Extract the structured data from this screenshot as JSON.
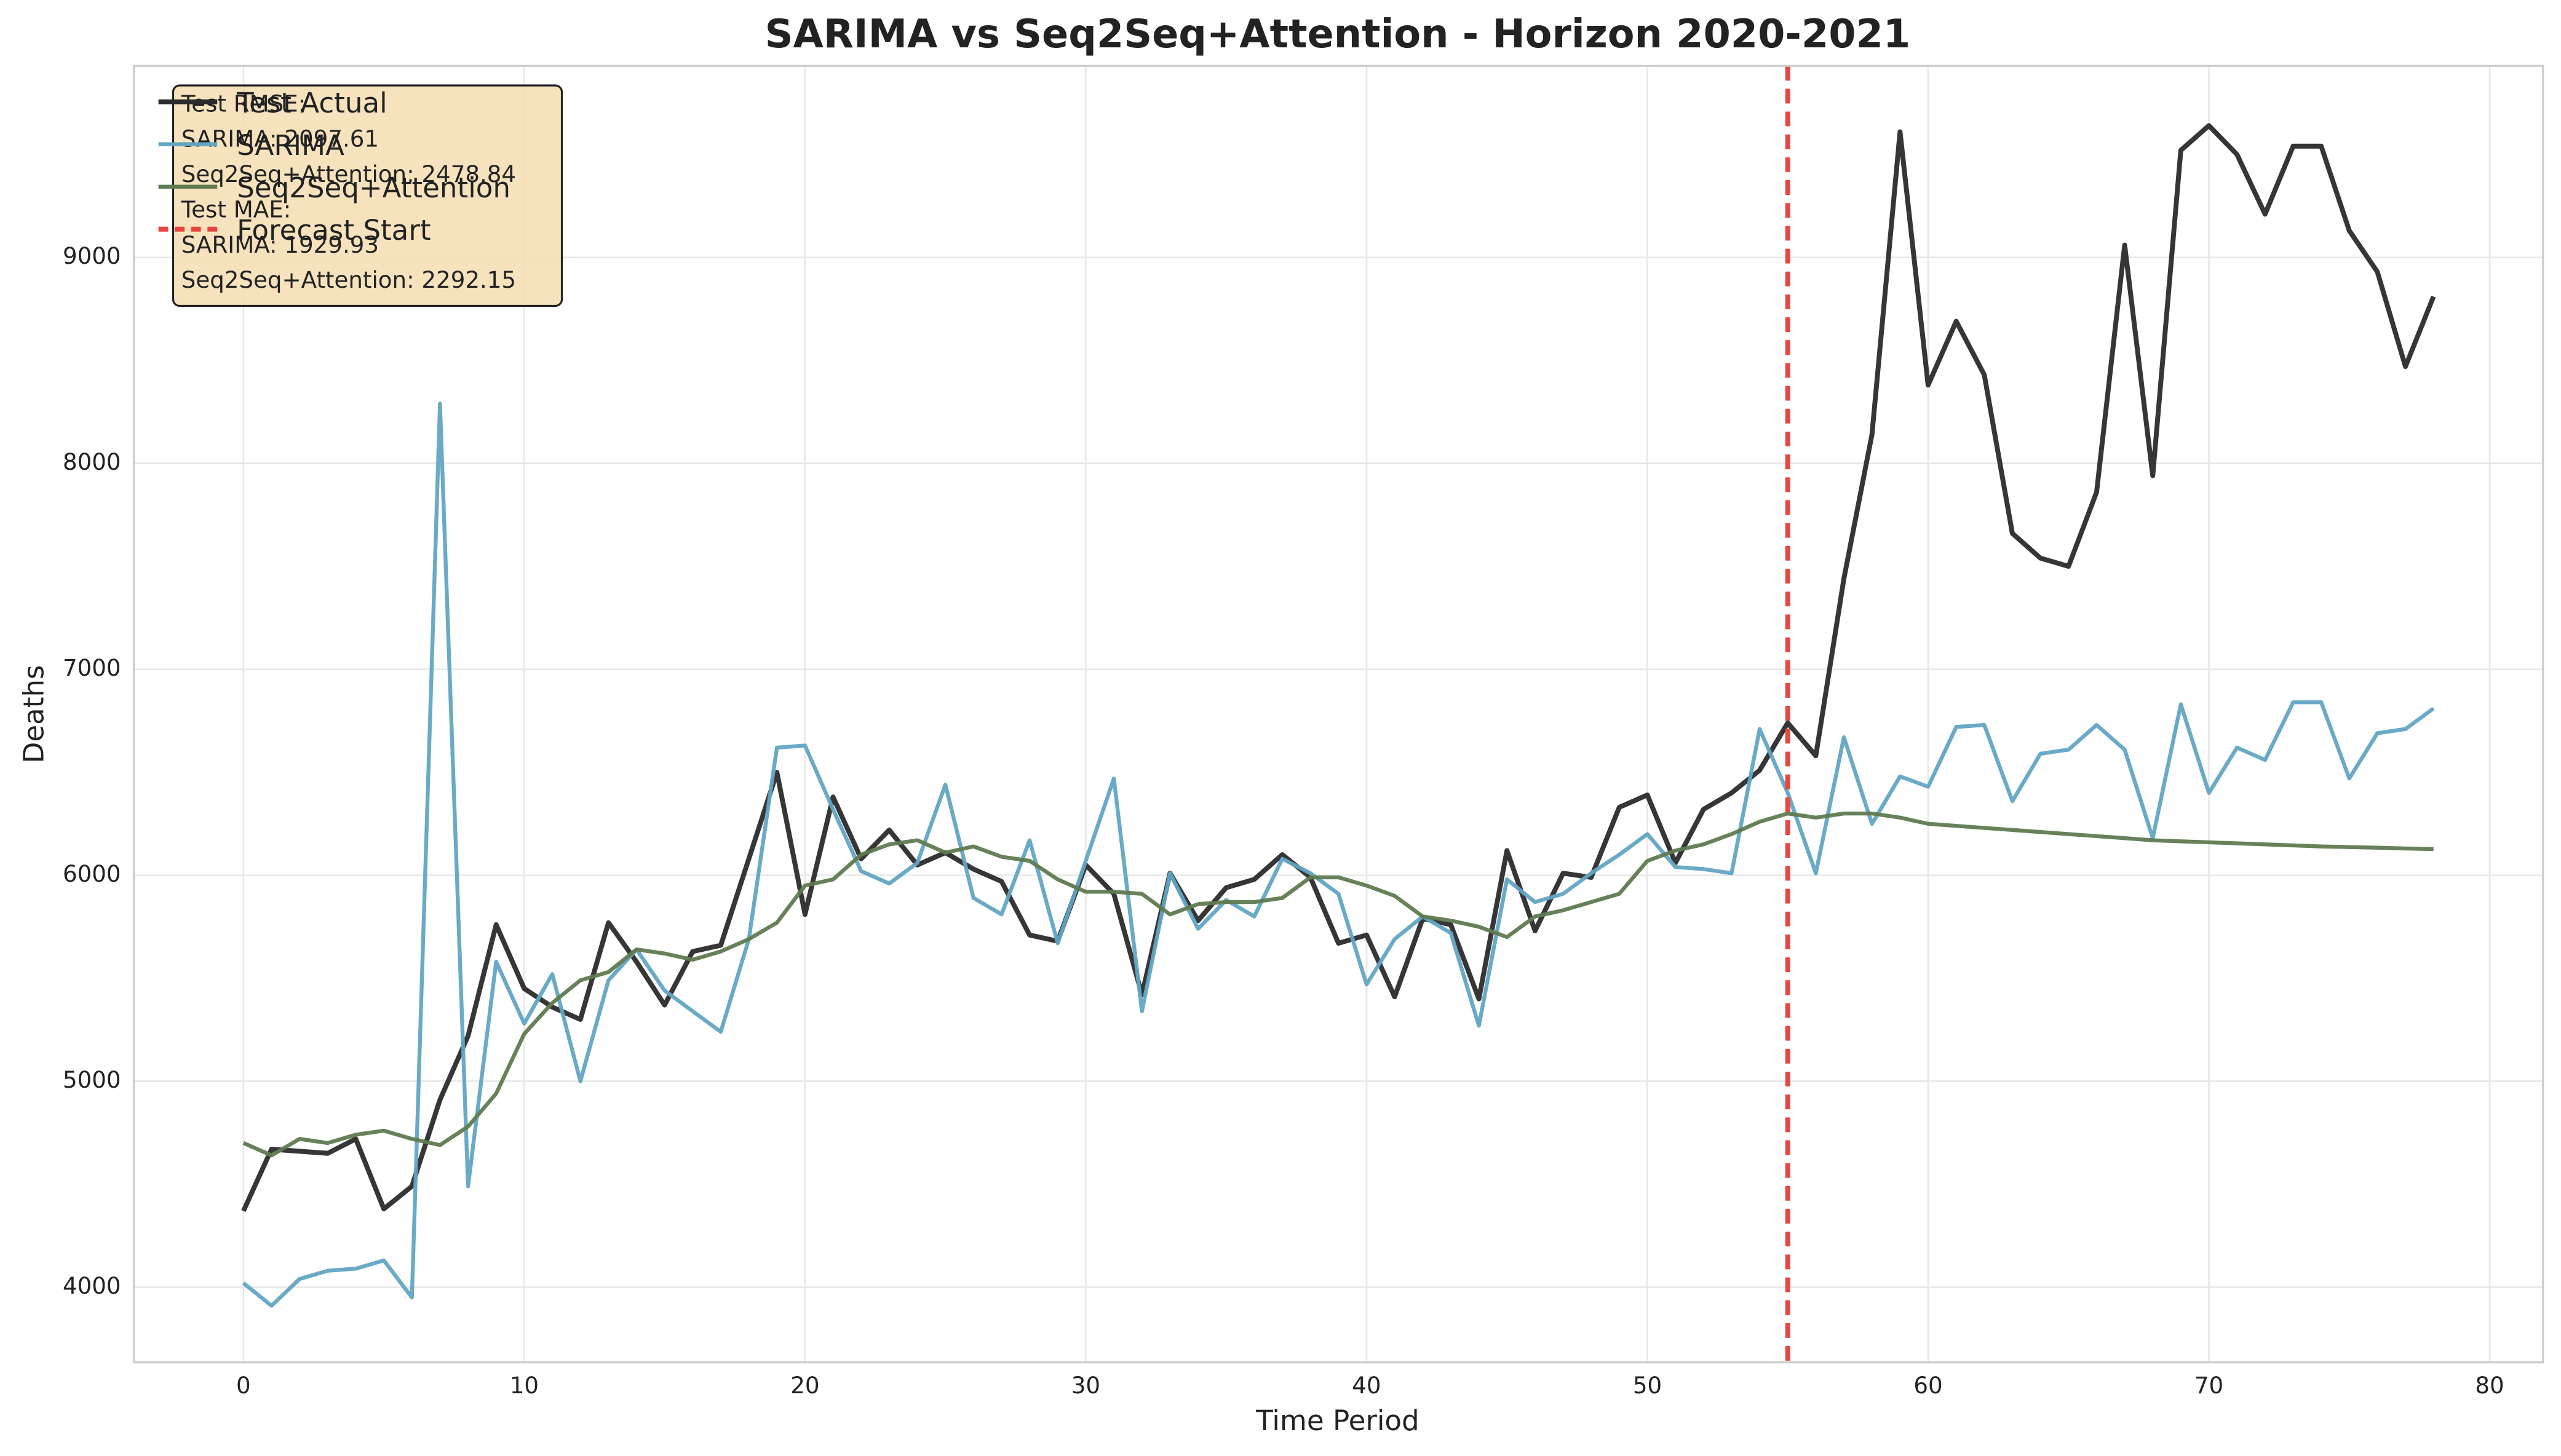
{
  "chart_data": {
    "type": "line",
    "title": "SARIMA vs Seq2Seq+Attention - Horizon 2020-2021",
    "x_label": "Time Period",
    "y_label": "Deaths",
    "x": [
      0,
      1,
      2,
      3,
      4,
      5,
      6,
      7,
      8,
      9,
      10,
      11,
      12,
      13,
      14,
      15,
      16,
      17,
      18,
      19,
      20,
      21,
      22,
      23,
      24,
      25,
      26,
      27,
      28,
      29,
      30,
      31,
      32,
      33,
      34,
      35,
      36,
      37,
      38,
      39,
      40,
      41,
      42,
      43,
      44,
      45,
      46,
      47,
      48,
      49,
      50,
      51,
      52,
      53,
      54,
      55,
      56,
      57,
      58,
      59,
      60,
      61,
      62,
      63,
      64,
      65,
      66,
      67,
      68,
      69,
      70,
      71,
      72,
      73,
      74,
      75,
      76,
      77,
      78
    ],
    "series": [
      {
        "name": "Test Actual",
        "color": "#2b2b2b",
        "width": 3,
        "values": [
          4370,
          4670,
          4660,
          4650,
          4720,
          4380,
          4490,
          4910,
          5220,
          5760,
          5450,
          5360,
          5300,
          5770,
          5580,
          5370,
          5630,
          5660,
          6080,
          6500,
          5810,
          6380,
          6080,
          6220,
          6050,
          6110,
          6030,
          5970,
          5710,
          5680,
          6050,
          5910,
          5420,
          6010,
          5780,
          5940,
          5980,
          6100,
          5990,
          5670,
          5710,
          5410,
          5790,
          5760,
          5400,
          6120,
          5730,
          6010,
          5990,
          6330,
          6390,
          6060,
          6320,
          6400,
          6510,
          6740,
          6580,
          7440,
          8140,
          9610,
          8380,
          8690,
          8430,
          7660,
          7540,
          7500,
          7860,
          9060,
          7940,
          9520,
          9640,
          9500,
          9210,
          9540,
          9540,
          9130,
          8930,
          8470,
          8810
        ]
      },
      {
        "name": "SARIMA",
        "color": "#62a5c3",
        "width": 2.4,
        "values": [
          4020,
          3910,
          4040,
          4080,
          4090,
          4130,
          3950,
          8290,
          4490,
          5580,
          5280,
          5520,
          5000,
          5490,
          5640,
          5440,
          5340,
          5240,
          5690,
          6620,
          6630,
          6320,
          6020,
          5960,
          6060,
          6440,
          5890,
          5810,
          6170,
          5670,
          6070,
          6470,
          5340,
          6010,
          5740,
          5880,
          5800,
          6080,
          6010,
          5910,
          5470,
          5690,
          5800,
          5720,
          5270,
          5980,
          5870,
          5910,
          6010,
          6100,
          6200,
          6040,
          6030,
          6010,
          6710,
          6400,
          6010,
          6670,
          6250,
          6480,
          6430,
          6720,
          6730,
          6360,
          6590,
          6610,
          6730,
          6610,
          6180,
          6830,
          6400,
          6620,
          6560,
          6840,
          6840,
          6470,
          6690,
          6710,
          6810
        ]
      },
      {
        "name": "Seq2Seq+Attention",
        "color": "#5f7a4f",
        "width": 2.4,
        "values": [
          4700,
          4640,
          4720,
          4700,
          4740,
          4760,
          4720,
          4690,
          4780,
          4940,
          5230,
          5380,
          5490,
          5530,
          5640,
          5620,
          5590,
          5630,
          5690,
          5770,
          5950,
          5980,
          6100,
          6150,
          6170,
          6110,
          6140,
          6090,
          6070,
          5980,
          5920,
          5920,
          5910,
          5810,
          5860,
          5870,
          5870,
          5890,
          5990,
          5990,
          5950,
          5900,
          5800,
          5780,
          5750,
          5700,
          5800,
          5830,
          5870,
          5910,
          6070,
          6120,
          6150,
          6200,
          6260,
          6300,
          6280,
          6300,
          6300,
          6280,
          6250,
          6240,
          6230,
          6220,
          6210,
          6200,
          6190,
          6180,
          6170,
          6165,
          6160,
          6155,
          6150,
          6145,
          6140,
          6137,
          6134,
          6130,
          6127
        ]
      }
    ],
    "vlines": [
      {
        "name": "Forecast Start",
        "x": 55,
        "color": "#e8473f"
      }
    ],
    "annotation": [
      "Test RMSE:",
      "SARIMA: 2097.61",
      "Seq2Seq+Attention: 2478.84",
      "Test MAE:",
      "SARIMA: 1929.93",
      "Seq2Seq+Attention: 2292.15"
    ],
    "xlim": [
      -3.9,
      81.9
    ],
    "ylim": [
      3635,
      9930
    ],
    "xticks": [
      0,
      10,
      20,
      30,
      40,
      50,
      60,
      70,
      80
    ],
    "yticks": [
      4000,
      5000,
      6000,
      7000,
      8000,
      9000
    ],
    "grid": true,
    "legend": "upper left"
  }
}
